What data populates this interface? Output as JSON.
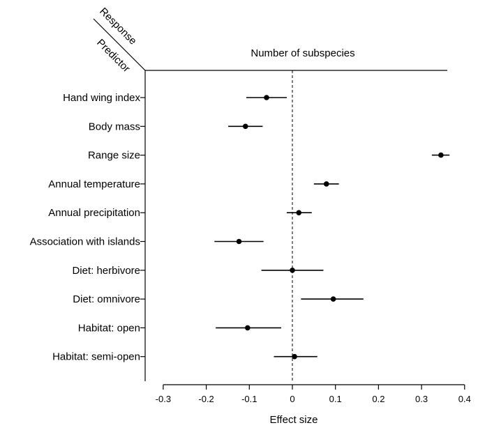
{
  "chart_data": {
    "type": "forest",
    "corner_labels": {
      "response": "Response",
      "predictor": "Predictor"
    },
    "title": "Number of subspecies",
    "xlabel": "Effect size",
    "xlim": [
      -0.33,
      0.4
    ],
    "x_ticks": [
      -0.3,
      -0.2,
      -0.1,
      0,
      0.1,
      0.2,
      0.3,
      0.4
    ],
    "x_tick_labels": [
      "-0.3",
      "-0.2",
      "-0.1",
      "0",
      "0.1",
      "0.2",
      "0.3",
      "0.4"
    ],
    "reference_line": 0,
    "rows": [
      {
        "label": "Hand wing index",
        "estimate": -0.06,
        "lower": -0.107,
        "upper": -0.013
      },
      {
        "label": "Body mass",
        "estimate": -0.109,
        "lower": -0.149,
        "upper": -0.069
      },
      {
        "label": "Range size",
        "estimate": 0.345,
        "lower": 0.324,
        "upper": 0.365
      },
      {
        "label": "Annual temperature",
        "estimate": 0.079,
        "lower": 0.05,
        "upper": 0.108
      },
      {
        "label": "Annual precipitation",
        "estimate": 0.015,
        "lower": -0.013,
        "upper": 0.045
      },
      {
        "label": "Association with islands",
        "estimate": -0.124,
        "lower": -0.181,
        "upper": -0.067
      },
      {
        "label": "Diet: herbivore",
        "estimate": 0.0,
        "lower": -0.072,
        "upper": 0.072
      },
      {
        "label": "Diet: omnivore",
        "estimate": 0.095,
        "lower": 0.02,
        "upper": 0.165
      },
      {
        "label": "Habitat: open",
        "estimate": -0.104,
        "lower": -0.178,
        "upper": -0.026
      },
      {
        "label": "Habitat: semi-open",
        "estimate": 0.005,
        "lower": -0.043,
        "upper": 0.058
      }
    ]
  }
}
